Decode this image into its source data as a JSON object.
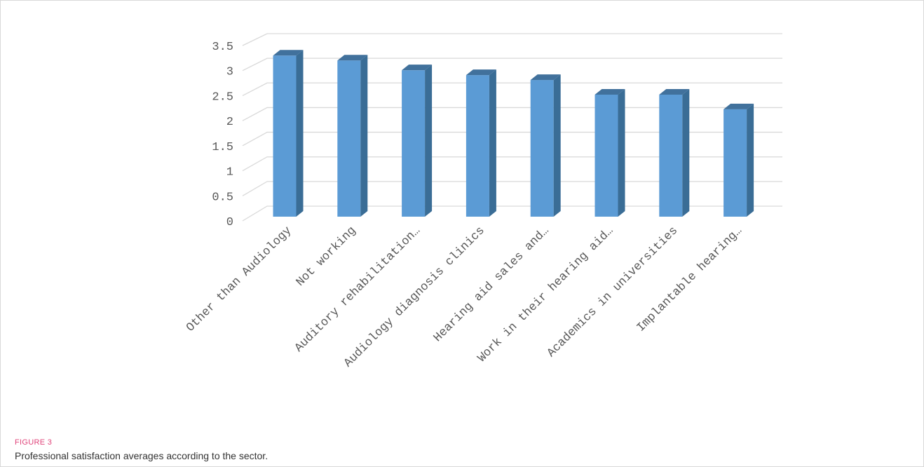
{
  "figure": {
    "label": "FIGURE 3",
    "caption": "Professional satisfaction averages according to the sector."
  },
  "chart_data": {
    "type": "bar",
    "style": "3d-column",
    "categories": [
      "Other than Audiology",
      "Not working",
      "Auditory rehabilitation…",
      "Audiology diagnosis clinics",
      "Hearing aid sales and…",
      "Work in their hearing aid…",
      "Academics in universities",
      "Implantable hearing…"
    ],
    "values": [
      3.1,
      3.0,
      2.8,
      2.7,
      2.6,
      2.3,
      2.3,
      2.0
    ],
    "yticks": [
      "0",
      "0.5",
      "1",
      "1.5",
      "2",
      "2.5",
      "3",
      "3.5"
    ],
    "ylim": [
      0,
      3.5
    ],
    "grid": true,
    "legend": "none",
    "colors": {
      "front": "#5b9bd5",
      "side": "#3a6d96",
      "top": "#41719c",
      "grid": "#d9d9d9",
      "text": "#595959"
    }
  }
}
